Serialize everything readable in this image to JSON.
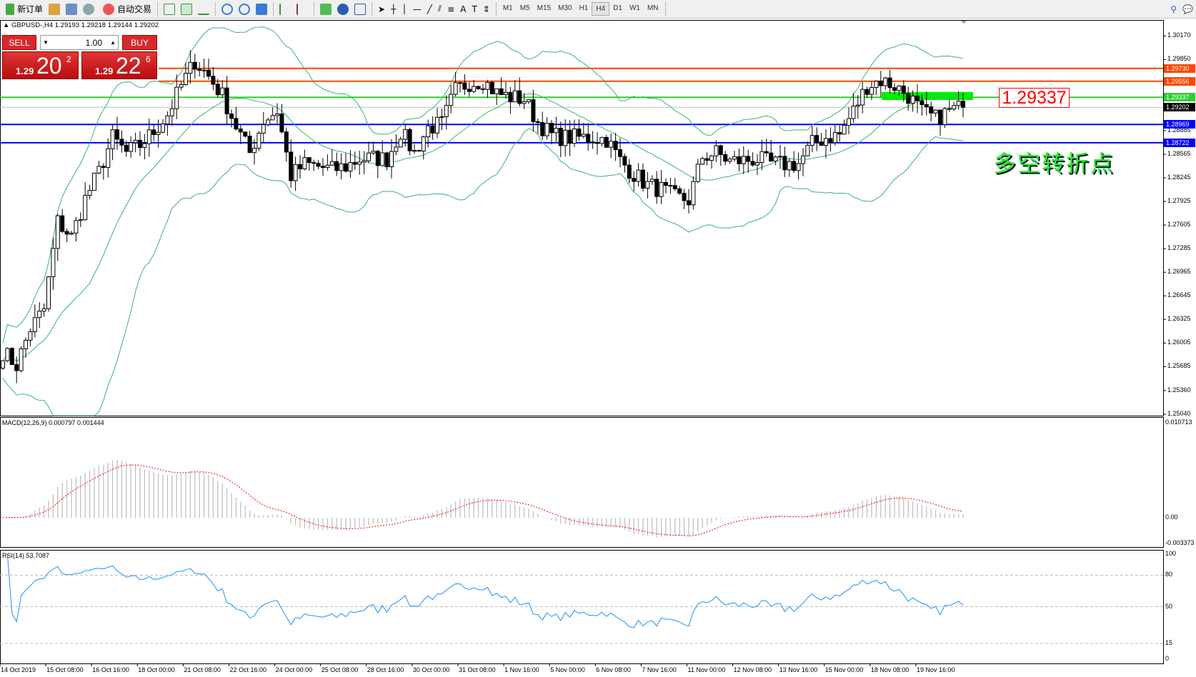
{
  "toolbar": {
    "new_order": "新订单",
    "auto_trade": "自动交易",
    "timeframes": [
      "M1",
      "M5",
      "M15",
      "M30",
      "H1",
      "H4",
      "D1",
      "W1",
      "MN"
    ],
    "active_timeframe": "H4"
  },
  "header": {
    "text": "GBPUSD-,H4  1.29193 1.29218 1.29144 1.29202"
  },
  "trade_panel": {
    "sell": "SELL",
    "buy": "BUY",
    "lot": "1.00",
    "sell_prefix": "1.29",
    "sell_big": "20",
    "sell_sup": "2",
    "buy_prefix": "1.29",
    "buy_big": "22",
    "buy_sup": "6"
  },
  "annotation": {
    "price_box": "1.29337",
    "text": "多空转折点",
    "box_color": "#ff0000",
    "text_color": "#22ee22"
  },
  "colors": {
    "up_line": "#ff4500",
    "support": "#0000ff",
    "pivot": "#32cd32",
    "bid": "#c0c0c0",
    "bands": "#3cb371",
    "macd_hist": "#c0c0c0",
    "macd_signal": "#ff0000",
    "rsi": "#1e90ff"
  },
  "chart_data": {
    "type": "candlestick",
    "symbol": "GBPUSD-",
    "timeframe": "H4",
    "price_ticks": [
      "1.30170",
      "1.29850",
      "1.28885",
      "1.28565",
      "1.28245",
      "1.27925",
      "1.27605",
      "1.27285",
      "1.26965",
      "1.26645",
      "1.26325",
      "1.26005",
      "1.25685",
      "1.25360",
      "1.25040"
    ],
    "ylim": [
      1.2504,
      1.3017
    ],
    "horizontal_lines": [
      {
        "price": 1.2973,
        "label": "1.29730",
        "color": "#ff4500"
      },
      {
        "price": 1.29556,
        "label": "1.29556",
        "color": "#ff4500"
      },
      {
        "price": 1.29337,
        "label": "1.29337",
        "color": "#32cd32"
      },
      {
        "price": 1.29202,
        "label": "1.29202",
        "color": "#000000"
      },
      {
        "price": 1.28969,
        "label": "1.28969",
        "color": "#0000ff"
      },
      {
        "price": 1.28722,
        "label": "1.28722",
        "color": "#0000ff"
      }
    ],
    "closes_every_3_bars": [
      1.2589,
      1.25703,
      1.26201,
      1.2646,
      1.27652,
      1.27444,
      1.27962,
      1.28325,
      1.28792,
      1.28584,
      1.28688,
      1.28874,
      1.29103,
      1.29496,
      1.29828,
      1.29621,
      1.29362,
      1.28947,
      1.28584,
      1.2902,
      1.29154,
      1.28273,
      1.28429,
      1.28398,
      1.28356,
      1.28398,
      1.28501,
      1.28512,
      1.28501,
      1.28874,
      1.28584,
      1.28926,
      1.28978,
      1.29434,
      1.29538,
      1.29569,
      1.29393,
      1.29341,
      1.2931,
      1.28999,
      1.28823,
      1.28792,
      1.28792,
      1.28792,
      1.28771,
      1.28481,
      1.28294,
      1.28149,
      1.28087,
      1.27983,
      1.27942,
      1.28532,
      1.28584,
      1.2847,
      1.28481,
      1.28501,
      1.28439,
      1.28429,
      1.28439,
      1.28709,
      1.28792,
      1.28833,
      1.29154,
      1.29496,
      1.29569,
      1.29496,
      1.29362,
      1.29134,
      1.29051,
      1.29154,
      1.29202
    ],
    "time_labels": [
      "14 Oct 2019",
      "15 Oct 08:00",
      "16 Oct 16:00",
      "18 Oct 00:00",
      "21 Oct 08:00",
      "22 Oct 16:00",
      "24 Oct 00:00",
      "25 Oct 08:00",
      "28 Oct 16:00",
      "30 Oct 00:00",
      "31 Oct 08:00",
      "1 Nov 16:00",
      "5 Nov 00:00",
      "6 Nov 08:00",
      "7 Nov 16:00",
      "11 Nov 00:00",
      "12 Nov 08:00",
      "13 Nov 16:00",
      "15 Nov 00:00",
      "18 Nov 08:00",
      "19 Nov 16:00"
    ],
    "macd": {
      "label": "MACD(12,26,9) 0.000797 0.001444",
      "ticks": [
        "0.010713",
        "0.00",
        "-0.003373"
      ],
      "ylim": [
        -0.003373,
        0.010713
      ]
    },
    "rsi": {
      "label": "RSI(14) 53.7087",
      "ticks": [
        "100",
        "80",
        "50",
        "15",
        "0"
      ],
      "levels": [
        80,
        50,
        15
      ]
    }
  }
}
